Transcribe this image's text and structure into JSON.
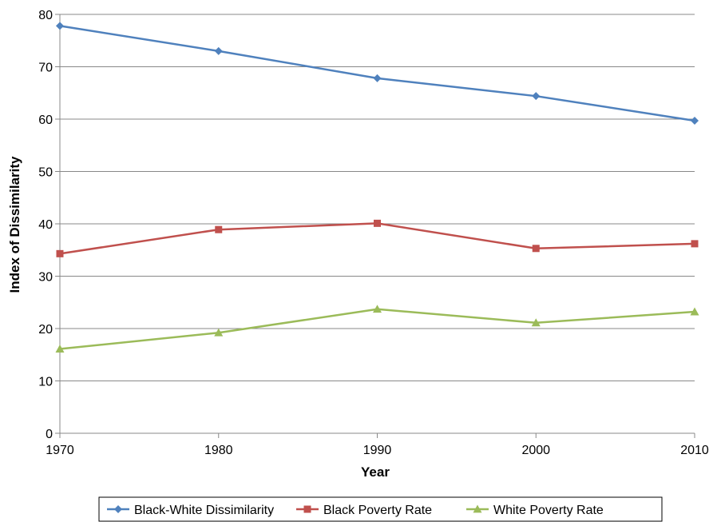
{
  "chart_data": {
    "type": "line",
    "title": "",
    "xlabel": "Year",
    "ylabel": "Index of Dissimilarity",
    "x": [
      "1970",
      "1980",
      "1990",
      "2000",
      "2010"
    ],
    "ylim": [
      0,
      80
    ],
    "yticks": [
      "0",
      "10",
      "20",
      "30",
      "40",
      "50",
      "60",
      "70",
      "80"
    ],
    "grid": "horizontal",
    "legend_position": "bottom",
    "series": [
      {
        "name": "Black-White Dissimilarity",
        "color": "#4F81BD",
        "marker": "diamond",
        "values": [
          77.8,
          73.0,
          67.8,
          64.4,
          59.7
        ]
      },
      {
        "name": "Black Poverty Rate",
        "color": "#C0504D",
        "marker": "square",
        "values": [
          34.3,
          38.9,
          40.1,
          35.3,
          36.2
        ]
      },
      {
        "name": "White Poverty Rate",
        "color": "#9BBB59",
        "marker": "triangle",
        "values": [
          16.1,
          19.2,
          23.7,
          21.1,
          23.2
        ]
      }
    ]
  }
}
